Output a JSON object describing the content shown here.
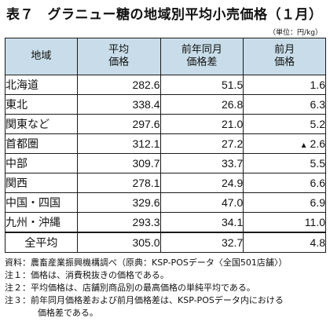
{
  "title": "表７　グラニュー糖の地域別平均小売価格（１月）",
  "unit": "（単位：円/kg）",
  "table": {
    "headers": {
      "region": "地域",
      "avg_price": [
        "平均",
        "価格"
      ],
      "yoy_diff": [
        "前年同月",
        "価格差"
      ],
      "mom": [
        "前月",
        "価格"
      ]
    },
    "rows": [
      {
        "region": "北海道",
        "avg_price": "282.6",
        "yoy_diff": "51.5",
        "mom": "1.6",
        "mom_marker": ""
      },
      {
        "region": "東北",
        "avg_price": "338.4",
        "yoy_diff": "26.8",
        "mom": "6.3",
        "mom_marker": ""
      },
      {
        "region": "関東など",
        "avg_price": "297.6",
        "yoy_diff": "21.0",
        "mom": "5.2",
        "mom_marker": ""
      },
      {
        "region": "首都圏",
        "avg_price": "312.1",
        "yoy_diff": "27.2",
        "mom": "2.6",
        "mom_marker": "▲"
      },
      {
        "region": "中部",
        "avg_price": "309.7",
        "yoy_diff": "33.7",
        "mom": "5.5",
        "mom_marker": ""
      },
      {
        "region": "関西",
        "avg_price": "278.1",
        "yoy_diff": "24.9",
        "mom": "6.6",
        "mom_marker": ""
      },
      {
        "region": "中国・四国",
        "avg_price": "329.6",
        "yoy_diff": "47.0",
        "mom": "6.9",
        "mom_marker": ""
      },
      {
        "region": "九州・沖縄",
        "avg_price": "293.3",
        "yoy_diff": "34.1",
        "mom": "11.0",
        "mom_marker": ""
      }
    ],
    "total": {
      "region": "全平均",
      "avg_price": "305.0",
      "yoy_diff": "32.7",
      "mom": "4.8"
    }
  },
  "notes": [
    {
      "label": "資料：",
      "text": "農畜産業振興機構調べ（原典：KSP-POSデータ〈全国501店舗〉）"
    },
    {
      "label": "注１：",
      "text": "価格は、消費税抜きの価格である。"
    },
    {
      "label": "注２：",
      "text": "平均価格は、店舗別商品別の最高価格の単純平均である。"
    },
    {
      "label": "注３：",
      "text": "前年同月価格差および前月価格差は、KSP-POSデータ内における",
      "cont": "価格差である。"
    }
  ]
}
